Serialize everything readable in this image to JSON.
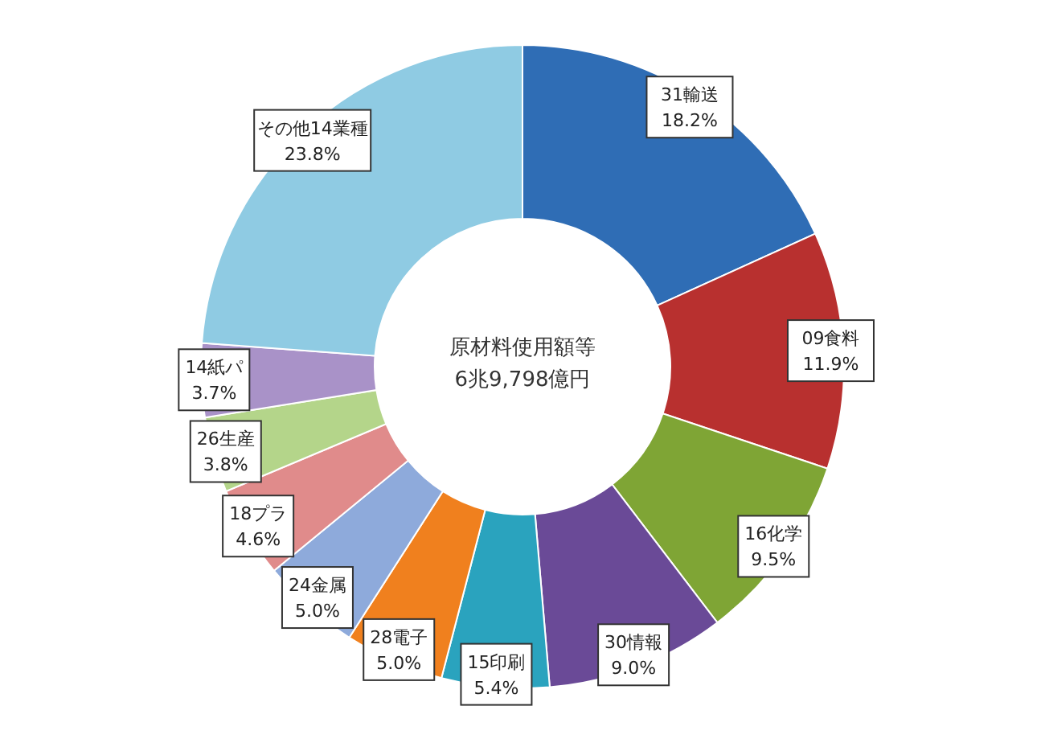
{
  "chart_data": {
    "type": "donut",
    "categories": [
      "31輸送",
      "09食料",
      "16化学",
      "30情報",
      "15印刷",
      "28電子",
      "24金属",
      "18プラ",
      "26生産",
      "14紙パ",
      "その他14業種"
    ],
    "values": [
      18.2,
      11.9,
      9.5,
      9.0,
      5.4,
      5.0,
      5.0,
      4.6,
      3.8,
      3.7,
      23.8
    ],
    "value_labels": [
      "18.2%",
      "11.9%",
      "9.5%",
      "9.0%",
      "5.4%",
      "5.0%",
      "5.0%",
      "4.6%",
      "3.8%",
      "3.7%",
      "23.8%"
    ],
    "colors": [
      "#2f6db5",
      "#b8302f",
      "#7fa535",
      "#6a4a97",
      "#2aa3be",
      "#f0801e",
      "#8eaadb",
      "#e08b8b",
      "#b4d58a",
      "#a992c8",
      "#8fcbe3"
    ],
    "annotations": [
      "原材料使用額等",
      "6兆9,798億円"
    ]
  }
}
